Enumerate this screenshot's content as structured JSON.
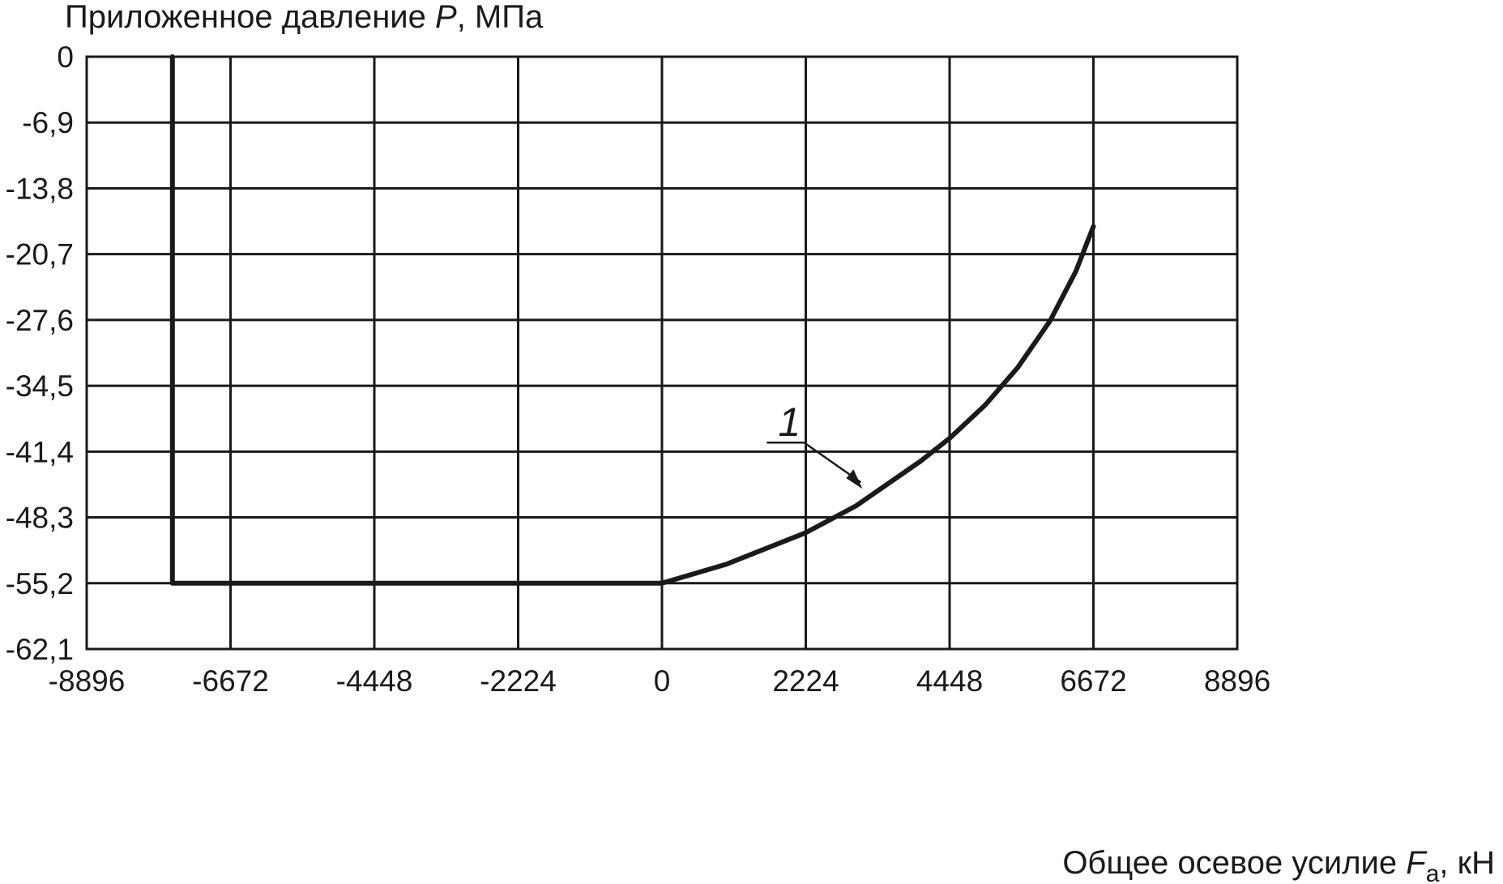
{
  "chart_data": {
    "type": "line",
    "ylabel": {
      "prefix": "Приложенное давление ",
      "symbol": "P",
      "suffix": ", МПа"
    },
    "xlabel": {
      "prefix": "Общее осевое усилие ",
      "symbol": "F",
      "subscript": "a",
      "suffix": ", кН"
    },
    "xlim": [
      -8896,
      8896
    ],
    "ylim": [
      -62.1,
      0
    ],
    "x_ticks": [
      -8896,
      -6672,
      -4448,
      -2224,
      0,
      2224,
      4448,
      6672,
      8896
    ],
    "x_tick_labels": [
      "-8896",
      "-6672",
      "-4448",
      "-2224",
      "0",
      "2224",
      "4448",
      "6672",
      "8896"
    ],
    "y_ticks": [
      0,
      -6.9,
      -13.8,
      -20.7,
      -27.6,
      -34.5,
      -41.4,
      -48.3,
      -55.2,
      -62.1
    ],
    "y_tick_labels": [
      "0",
      "-6,9",
      "-13,8",
      "-20,7",
      "-27,6",
      "-34,5",
      "-41,4",
      "-48,3",
      "-55,2",
      "-62,1"
    ],
    "grid": true,
    "series": [
      {
        "points": [
          [
            -7570,
            0
          ],
          [
            -7570,
            -55.2
          ],
          [
            0,
            -55.2
          ],
          [
            1000,
            -53.2
          ],
          [
            2224,
            -49.9
          ],
          [
            3000,
            -47.1
          ],
          [
            4000,
            -42.4
          ],
          [
            4448,
            -40.0
          ],
          [
            5000,
            -36.5
          ],
          [
            5500,
            -32.6
          ],
          [
            6000,
            -27.7
          ],
          [
            6400,
            -22.5
          ],
          [
            6672,
            -17.8
          ]
        ]
      }
    ],
    "annotations": [
      {
        "text": "1",
        "x": 3100,
        "y": -45.3
      }
    ]
  }
}
